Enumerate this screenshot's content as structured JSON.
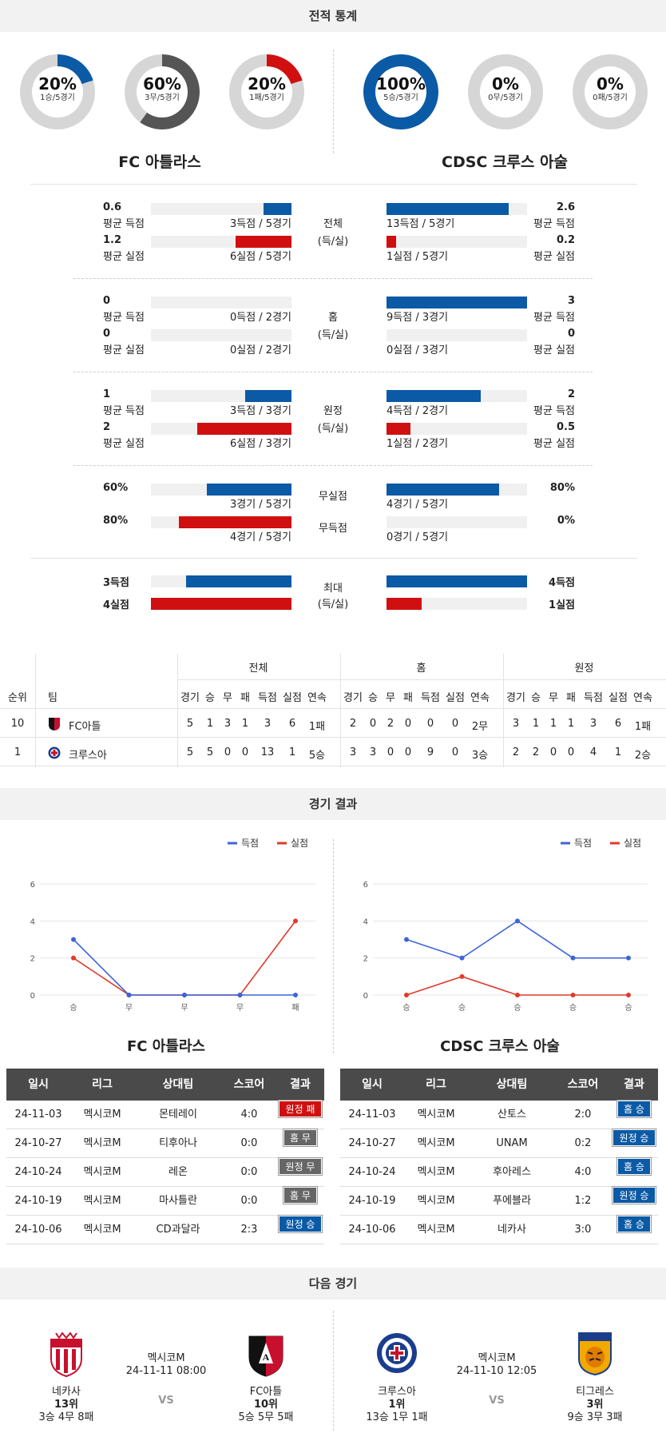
{
  "sections": {
    "stats_title": "전적 통계",
    "results_title": "경기 결과",
    "next_title": "다음 경기"
  },
  "donuts": {
    "left": [
      {
        "pct": "20%",
        "sub": "1승/5경기",
        "value": 0.2,
        "color": "#0b5aa6"
      },
      {
        "pct": "60%",
        "sub": "3무/5경기",
        "value": 0.6,
        "color": "#555555"
      },
      {
        "pct": "20%",
        "sub": "1패/5경기",
        "value": 0.2,
        "color": "#d01010"
      }
    ],
    "right": [
      {
        "pct": "100%",
        "sub": "5승/5경기",
        "value": 1.0,
        "color": "#0b5aa6"
      },
      {
        "pct": "0%",
        "sub": "0무/5경기",
        "value": 0.0,
        "color": "#555555"
      },
      {
        "pct": "0%",
        "sub": "0패/5경기",
        "value": 0.0,
        "color": "#d01010"
      }
    ]
  },
  "teams": {
    "left": "FC 아틀라스",
    "right": "CDSC 크루스 아술"
  },
  "compare": {
    "label_avg_scored": "평균 득점",
    "label_avg_conceded": "평균 실점",
    "groups": [
      {
        "title": "전체",
        "subtitle": "(득/실)",
        "left": {
          "scored": "0.6",
          "scored_detail": "3득점 / 5경기",
          "scored_frac": 0.2,
          "conceded": "1.2",
          "conceded_detail": "6실점 / 5경기",
          "conceded_frac": 0.4
        },
        "right": {
          "scored": "2.6",
          "scored_detail": "13득점 / 5경기",
          "scored_frac": 0.87,
          "conceded": "0.2",
          "conceded_detail": "1실점 / 5경기",
          "conceded_frac": 0.07
        }
      },
      {
        "title": "홈",
        "subtitle": "(득/실)",
        "left": {
          "scored": "0",
          "scored_detail": "0득점 / 2경기",
          "scored_frac": 0,
          "conceded": "0",
          "conceded_detail": "0실점 / 2경기",
          "conceded_frac": 0
        },
        "right": {
          "scored": "3",
          "scored_detail": "9득점 / 3경기",
          "scored_frac": 1.0,
          "conceded": "0",
          "conceded_detail": "0실점 / 3경기",
          "conceded_frac": 0
        }
      },
      {
        "title": "원정",
        "subtitle": "(득/실)",
        "left": {
          "scored": "1",
          "scored_detail": "3득점 / 3경기",
          "scored_frac": 0.33,
          "conceded": "2",
          "conceded_detail": "6실점 / 3경기",
          "conceded_frac": 0.67
        },
        "right": {
          "scored": "2",
          "scored_detail": "4득점 / 2경기",
          "scored_frac": 0.67,
          "conceded": "0.5",
          "conceded_detail": "1실점 / 2경기",
          "conceded_frac": 0.17
        }
      }
    ],
    "clean": {
      "title_clean": "무실점",
      "title_noscore": "무득점",
      "left": {
        "clean": "60%",
        "clean_detail": "3경기 / 5경기",
        "clean_frac": 0.6,
        "noscore": "80%",
        "noscore_detail": "4경기 / 5경기",
        "noscore_frac": 0.8
      },
      "right": {
        "clean": "80%",
        "clean_detail": "4경기 / 5경기",
        "clean_frac": 0.8,
        "noscore": "0%",
        "noscore_detail": "0경기 / 5경기",
        "noscore_frac": 0
      }
    },
    "max": {
      "title": "최대",
      "subtitle": "(득/실)",
      "left": {
        "scored": "3득점",
        "scored_frac": 0.75,
        "conceded": "4실점",
        "conceded_frac": 1.0
      },
      "right": {
        "scored": "4득점",
        "scored_frac": 1.0,
        "conceded": "1실점",
        "conceded_frac": 0.25
      }
    }
  },
  "standings": {
    "group_headers": [
      "전체",
      "홈",
      "원정"
    ],
    "col_rank": "순위",
    "col_team": "팀",
    "sub_cols": [
      "경기",
      "승",
      "무",
      "패",
      "득점",
      "실점",
      "연속"
    ],
    "rows": [
      {
        "rank": "10",
        "team": "FC아틀",
        "total": [
          "5",
          "1",
          "3",
          "1",
          "3",
          "6",
          "1패"
        ],
        "home": [
          "2",
          "0",
          "2",
          "0",
          "0",
          "0",
          "2무"
        ],
        "away": [
          "3",
          "1",
          "1",
          "1",
          "3",
          "6",
          "1패"
        ]
      },
      {
        "rank": "1",
        "team": "크루스아",
        "total": [
          "5",
          "5",
          "0",
          "0",
          "13",
          "1",
          "5승"
        ],
        "home": [
          "3",
          "3",
          "0",
          "0",
          "9",
          "0",
          "3승"
        ],
        "away": [
          "2",
          "2",
          "0",
          "0",
          "4",
          "1",
          "2승"
        ]
      }
    ]
  },
  "chart_data": [
    {
      "type": "line",
      "categories": [
        "승",
        "무",
        "무",
        "무",
        "패"
      ],
      "series": [
        {
          "name": "득점",
          "values": [
            3,
            0,
            0,
            0,
            0
          ],
          "color": "#3d64d8"
        },
        {
          "name": "실점",
          "values": [
            2,
            0,
            0,
            0,
            4
          ],
          "color": "#e03a2a"
        }
      ],
      "yticks": [
        "0",
        "2",
        "4",
        "6"
      ],
      "ylim": [
        0,
        6
      ],
      "grid": true,
      "legend": "top-right"
    },
    {
      "type": "line",
      "categories": [
        "승",
        "승",
        "승",
        "승",
        "승"
      ],
      "series": [
        {
          "name": "득점",
          "values": [
            3,
            2,
            4,
            2,
            2
          ],
          "color": "#3d64d8"
        },
        {
          "name": "실점",
          "values": [
            0,
            1,
            0,
            0,
            0
          ],
          "color": "#e03a2a"
        }
      ],
      "yticks": [
        "0",
        "2",
        "4",
        "6"
      ],
      "ylim": [
        0,
        6
      ],
      "grid": true,
      "legend": "top-right"
    }
  ],
  "results": {
    "headers": [
      "일시",
      "리그",
      "상대팀",
      "스코어",
      "결과"
    ],
    "left": [
      {
        "date": "24-11-03",
        "league": "멕시코M",
        "opp": "몬테레이",
        "score": "4:0",
        "result": "원정 패",
        "color": "red"
      },
      {
        "date": "24-10-27",
        "league": "멕시코M",
        "opp": "티후아나",
        "score": "0:0",
        "result": "홈 무",
        "color": "gray"
      },
      {
        "date": "24-10-24",
        "league": "멕시코M",
        "opp": "레온",
        "score": "0:0",
        "result": "원정 무",
        "color": "gray"
      },
      {
        "date": "24-10-19",
        "league": "멕시코M",
        "opp": "마사틀란",
        "score": "0:0",
        "result": "홈 무",
        "color": "gray"
      },
      {
        "date": "24-10-06",
        "league": "멕시코M",
        "opp": "CD과달라",
        "score": "2:3",
        "result": "원정 승",
        "color": "blue"
      }
    ],
    "right": [
      {
        "date": "24-11-03",
        "league": "멕시코M",
        "opp": "산토스",
        "score": "2:0",
        "result": "홈 승",
        "color": "blue"
      },
      {
        "date": "24-10-27",
        "league": "멕시코M",
        "opp": "UNAM",
        "score": "0:2",
        "result": "원정 승",
        "color": "blue"
      },
      {
        "date": "24-10-24",
        "league": "멕시코M",
        "opp": "후아레스",
        "score": "4:0",
        "result": "홈 승",
        "color": "blue"
      },
      {
        "date": "24-10-19",
        "league": "멕시코M",
        "opp": "푸에블라",
        "score": "1:2",
        "result": "원정 승",
        "color": "blue"
      },
      {
        "date": "24-10-06",
        "league": "멕시코M",
        "opp": "네카사",
        "score": "3:0",
        "result": "홈 승",
        "color": "blue"
      }
    ]
  },
  "next": {
    "left": {
      "home": {
        "name": "네카사",
        "rank": "13위",
        "record": "3승 4무 8패"
      },
      "league": "멕시코M",
      "datetime": "24-11-11 08:00",
      "vs": "VS",
      "away": {
        "name": "FC아틀",
        "rank": "10위",
        "record": "5승 5무 5패"
      }
    },
    "right": {
      "home": {
        "name": "크루스아",
        "rank": "1위",
        "record": "13승 1무 1패"
      },
      "league": "멕시코M",
      "datetime": "24-11-10 12:05",
      "vs": "VS",
      "away": {
        "name": "티그레스",
        "rank": "3위",
        "record": "9승 3무 3패"
      }
    }
  }
}
